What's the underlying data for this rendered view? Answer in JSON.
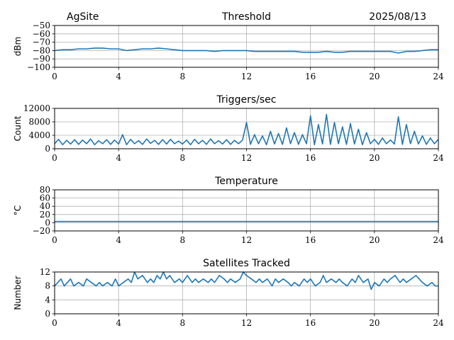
{
  "header": {
    "site": "AgSite",
    "date": "2025/08/13"
  },
  "colors": {
    "series": "#1f77b4",
    "grid": "#b0b0b0",
    "axis": "#000000"
  },
  "chart_data": [
    {
      "type": "line",
      "title": "Threshold",
      "ylabel": "dBm",
      "xlim": [
        0,
        24
      ],
      "ylim": [
        -100,
        -50
      ],
      "xticks": [
        0,
        4,
        8,
        12,
        16,
        20,
        24
      ],
      "xticklabels": [
        "0",
        "4",
        "8",
        "12",
        "16",
        "20",
        "24"
      ],
      "yticks": [
        -100,
        -90,
        -80,
        -70,
        -60,
        -50
      ],
      "yticklabels": [
        "−100",
        "−90",
        "−80",
        "−70",
        "−60",
        "−50"
      ],
      "grid": true,
      "series": [
        {
          "x": [
            0,
            0.5,
            1,
            1.5,
            2,
            2.5,
            3,
            3.5,
            4,
            4.5,
            5,
            5.5,
            6,
            6.5,
            7,
            7.5,
            8,
            8.5,
            9,
            9.5,
            10,
            10.5,
            11,
            11.5,
            12,
            12.5,
            13,
            13.5,
            14,
            14.5,
            15,
            15.5,
            16,
            16.5,
            17,
            17.5,
            18,
            18.5,
            19,
            19.5,
            20,
            20.5,
            21,
            21.5,
            22,
            22.5,
            23,
            23.5,
            24
          ],
          "y": [
            -80,
            -79,
            -79,
            -78,
            -78,
            -77,
            -77,
            -78,
            -78,
            -80,
            -79,
            -78,
            -78,
            -77,
            -78,
            -79,
            -80,
            -80,
            -80,
            -80,
            -81,
            -80,
            -80,
            -80,
            -80,
            -81,
            -81,
            -81,
            -81,
            -81,
            -81,
            -82,
            -82,
            -82,
            -81,
            -82,
            -82,
            -81,
            -81,
            -81,
            -81,
            -81,
            -81,
            -83,
            -81,
            -81,
            -80,
            -79,
            -79
          ]
        }
      ]
    },
    {
      "type": "line",
      "title": "Triggers/sec",
      "ylabel": "Count",
      "xlim": [
        0,
        24
      ],
      "ylim": [
        0,
        12000
      ],
      "xticks": [
        0,
        4,
        8,
        12,
        16,
        20,
        24
      ],
      "xticklabels": [
        "0",
        "4",
        "8",
        "12",
        "16",
        "20",
        "24"
      ],
      "yticks": [
        0,
        4000,
        8000,
        12000
      ],
      "yticklabels": [
        "0",
        "4000",
        "8000",
        "12000"
      ],
      "grid": true,
      "series": [
        {
          "x": [
            0,
            0.25,
            0.5,
            0.75,
            1,
            1.25,
            1.5,
            1.75,
            2,
            2.25,
            2.5,
            2.75,
            3,
            3.25,
            3.5,
            3.75,
            4,
            4.25,
            4.5,
            4.75,
            5,
            5.25,
            5.5,
            5.75,
            6,
            6.25,
            6.5,
            6.75,
            7,
            7.25,
            7.5,
            7.75,
            8,
            8.25,
            8.5,
            8.75,
            9,
            9.25,
            9.5,
            9.75,
            10,
            10.25,
            10.5,
            10.75,
            11,
            11.25,
            11.5,
            11.75,
            12,
            12.25,
            12.5,
            12.75,
            13,
            13.25,
            13.5,
            13.75,
            14,
            14.25,
            14.5,
            14.75,
            15,
            15.25,
            15.5,
            15.75,
            16,
            16.25,
            16.5,
            16.75,
            17,
            17.25,
            17.5,
            17.75,
            18,
            18.25,
            18.5,
            18.75,
            19,
            19.25,
            19.5,
            19.75,
            20,
            20.25,
            20.5,
            20.75,
            21,
            21.25,
            21.5,
            21.75,
            22,
            22.25,
            22.5,
            22.75,
            23,
            23.25,
            23.5,
            23.75,
            24
          ],
          "y": [
            1500,
            2800,
            1200,
            2500,
            1400,
            2700,
            1300,
            2600,
            1500,
            2900,
            1200,
            2400,
            1500,
            2700,
            1300,
            2600,
            1400,
            4200,
            1200,
            2800,
            1500,
            2400,
            1300,
            2900,
            1600,
            2500,
            1300,
            2700,
            1400,
            2800,
            1500,
            2300,
            1400,
            2600,
            1200,
            2800,
            1500,
            2500,
            1300,
            2900,
            1500,
            2400,
            1400,
            2700,
            1300,
            2500,
            1500,
            2600,
            7800,
            1300,
            4200,
            1500,
            3800,
            1200,
            5200,
            1400,
            4500,
            1300,
            6200,
            1500,
            4800,
            1300,
            4200,
            1500,
            9800,
            1200,
            7200,
            1400,
            10200,
            1300,
            7800,
            1500,
            6500,
            1300,
            7500,
            1400,
            5800,
            1200,
            4800,
            1500,
            2800,
            1300,
            3200,
            1500,
            2600,
            1400,
            9500,
            1300,
            7200,
            1500,
            5200,
            1400,
            3800,
            1300,
            3200,
            1500,
            2800
          ]
        }
      ]
    },
    {
      "type": "line",
      "title": "Temperature",
      "ylabel": "°C",
      "xlim": [
        0,
        24
      ],
      "ylim": [
        -20,
        80
      ],
      "xticks": [
        0,
        4,
        8,
        12,
        16,
        20,
        24
      ],
      "xticklabels": [
        "0",
        "4",
        "8",
        "12",
        "16",
        "20",
        "24"
      ],
      "yticks": [
        -20,
        0,
        20,
        40,
        60,
        80
      ],
      "yticklabels": [
        "−20",
        "0",
        "20",
        "40",
        "60",
        "80"
      ],
      "grid": true,
      "series": [
        {
          "x": [
            0,
            24
          ],
          "y": [
            3,
            3
          ]
        }
      ]
    },
    {
      "type": "line",
      "title": "Satellites Tracked",
      "ylabel": "Number",
      "xlim": [
        0,
        24
      ],
      "ylim": [
        0,
        12
      ],
      "xticks": [
        0,
        4,
        8,
        12,
        16,
        20,
        24
      ],
      "xticklabels": [
        "0",
        "4",
        "8",
        "12",
        "16",
        "20",
        "24"
      ],
      "yticks": [
        0,
        4,
        8,
        12
      ],
      "yticklabels": [
        "0",
        "4",
        "8",
        "12"
      ],
      "grid": true,
      "series": [
        {
          "x": [
            0,
            0.4,
            0.6,
            0.8,
            1,
            1.2,
            1.5,
            1.8,
            2,
            2.3,
            2.6,
            2.8,
            3,
            3.3,
            3.6,
            3.8,
            4,
            4.3,
            4.6,
            4.8,
            5,
            5.2,
            5.5,
            5.8,
            6,
            6.2,
            6.4,
            6.6,
            6.8,
            7,
            7.2,
            7.5,
            7.8,
            8,
            8.3,
            8.6,
            8.8,
            9,
            9.3,
            9.6,
            9.8,
            10,
            10.3,
            10.6,
            10.8,
            11,
            11.3,
            11.6,
            11.8,
            12,
            12.3,
            12.6,
            12.8,
            13,
            13.3,
            13.6,
            13.8,
            14,
            14.3,
            14.6,
            14.8,
            15,
            15.3,
            15.6,
            15.8,
            16,
            16.3,
            16.6,
            16.8,
            17,
            17.3,
            17.6,
            17.8,
            18,
            18.3,
            18.6,
            18.8,
            19,
            19.3,
            19.6,
            19.8,
            20,
            20.3,
            20.6,
            20.8,
            21,
            21.3,
            21.6,
            21.8,
            22,
            22.3,
            22.6,
            22.8,
            23,
            23.3,
            23.6,
            23.8,
            24
          ],
          "y": [
            8,
            10,
            8,
            9,
            10,
            8,
            9,
            8,
            10,
            9,
            8,
            9,
            8,
            9,
            8,
            10,
            8,
            9,
            10,
            9,
            12,
            10,
            11,
            9,
            10,
            9,
            11,
            10,
            12,
            10,
            11,
            9,
            10,
            9,
            11,
            9,
            10,
            9,
            10,
            9,
            10,
            9,
            11,
            10,
            9,
            10,
            9,
            10,
            12,
            11,
            10,
            9,
            10,
            9,
            10,
            8,
            10,
            9,
            10,
            9,
            8,
            9,
            8,
            10,
            9,
            10,
            8,
            9,
            11,
            9,
            10,
            9,
            10,
            9,
            8,
            10,
            9,
            11,
            9,
            10,
            7,
            9,
            8,
            10,
            9,
            10,
            11,
            9,
            10,
            9,
            10,
            11,
            10,
            9,
            8,
            9,
            8,
            8
          ]
        }
      ]
    }
  ]
}
